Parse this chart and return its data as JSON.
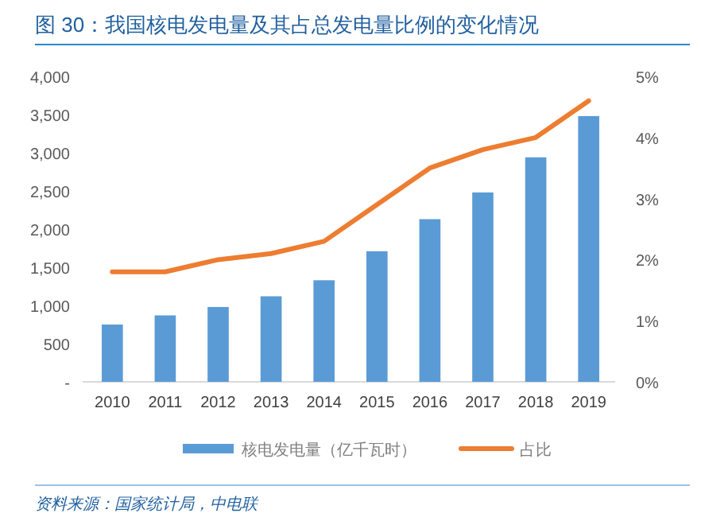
{
  "chart_data": {
    "type": "bar",
    "title": "图 30：我国核电发电量及其占总发电量比例的变化情况",
    "categories": [
      "2010",
      "2011",
      "2012",
      "2013",
      "2014",
      "2015",
      "2016",
      "2017",
      "2018",
      "2019"
    ],
    "series": [
      {
        "name": "核电发电量（亿千瓦时）",
        "color": "#5b9bd5",
        "values": [
          750,
          870,
          980,
          1120,
          1330,
          1710,
          2130,
          2480,
          2940,
          3480
        ]
      },
      {
        "name": "占比",
        "type": "line",
        "axis": "y2",
        "color": "#ed7d31",
        "values": [
          1.8,
          1.8,
          2.0,
          2.1,
          2.3,
          2.9,
          3.5,
          3.8,
          4.0,
          4.6
        ]
      }
    ],
    "ylim": [
      0,
      4000
    ],
    "yticks": [
      {
        "value": 0,
        "label": "-"
      },
      {
        "value": 500,
        "label": "500"
      },
      {
        "value": 1000,
        "label": "1,000"
      },
      {
        "value": 1500,
        "label": "1,500"
      },
      {
        "value": 2000,
        "label": "2,000"
      },
      {
        "value": 2500,
        "label": "2,500"
      },
      {
        "value": 3000,
        "label": "3,000"
      },
      {
        "value": 3500,
        "label": "3,500"
      },
      {
        "value": 4000,
        "label": "4,000"
      }
    ],
    "y2lim": [
      0,
      5
    ],
    "y2ticks": [
      {
        "value": 0,
        "label": "0%"
      },
      {
        "value": 1,
        "label": "1%"
      },
      {
        "value": 2,
        "label": "2%"
      },
      {
        "value": 3,
        "label": "3%"
      },
      {
        "value": 4,
        "label": "4%"
      },
      {
        "value": 5,
        "label": "5%"
      }
    ],
    "legend": "bottom",
    "annotations": [
      "资料来源：国家统计局，中电联"
    ]
  }
}
